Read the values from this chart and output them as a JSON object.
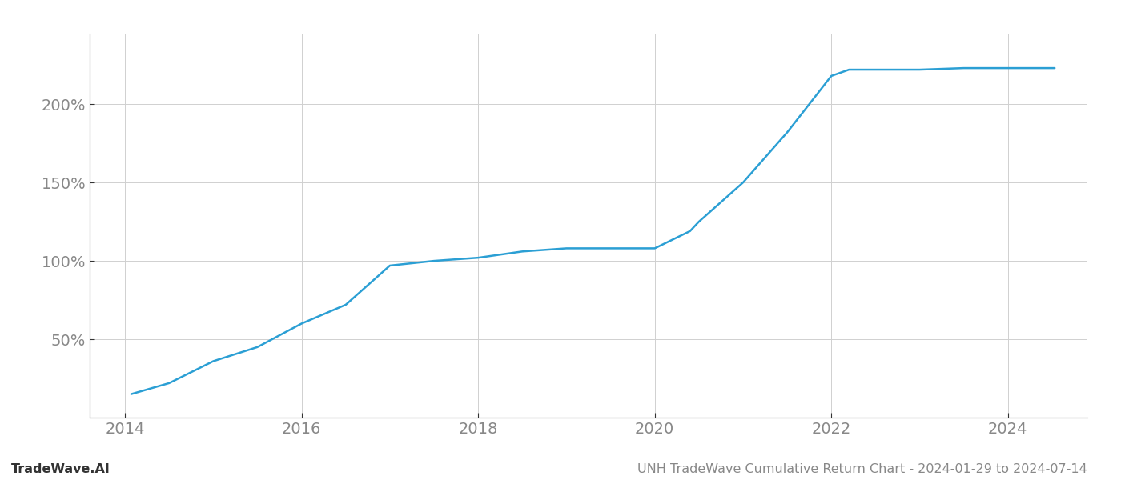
{
  "title": "UNH TradeWave Cumulative Return Chart - 2024-01-29 to 2024-07-14",
  "watermark": "TradeWave.AI",
  "line_color": "#2b9fd4",
  "background_color": "#ffffff",
  "grid_color": "#d0d0d0",
  "x_years": [
    2014.07,
    2014.5,
    2015.0,
    2015.5,
    2016.0,
    2016.5,
    2017.0,
    2017.5,
    2018.0,
    2018.5,
    2019.0,
    2019.5,
    2020.0,
    2020.4,
    2020.5,
    2021.0,
    2021.5,
    2022.0,
    2022.2,
    2022.5,
    2023.0,
    2023.5,
    2024.0,
    2024.53
  ],
  "y_values": [
    15,
    22,
    36,
    45,
    60,
    72,
    97,
    100,
    102,
    106,
    108,
    108,
    108,
    119,
    125,
    150,
    182,
    218,
    222,
    222,
    222,
    223,
    223,
    223
  ],
  "xlim": [
    2013.6,
    2024.9
  ],
  "ylim": [
    0,
    245
  ],
  "yticks": [
    50,
    100,
    150,
    200
  ],
  "ytick_labels": [
    "50%",
    "100%",
    "150%",
    "200%"
  ],
  "xticks": [
    2014,
    2016,
    2018,
    2020,
    2022,
    2024
  ],
  "tick_color": "#888888",
  "tick_fontsize": 14,
  "title_fontsize": 11.5,
  "watermark_fontsize": 11.5,
  "line_width": 1.8,
  "spine_color": "#333333"
}
